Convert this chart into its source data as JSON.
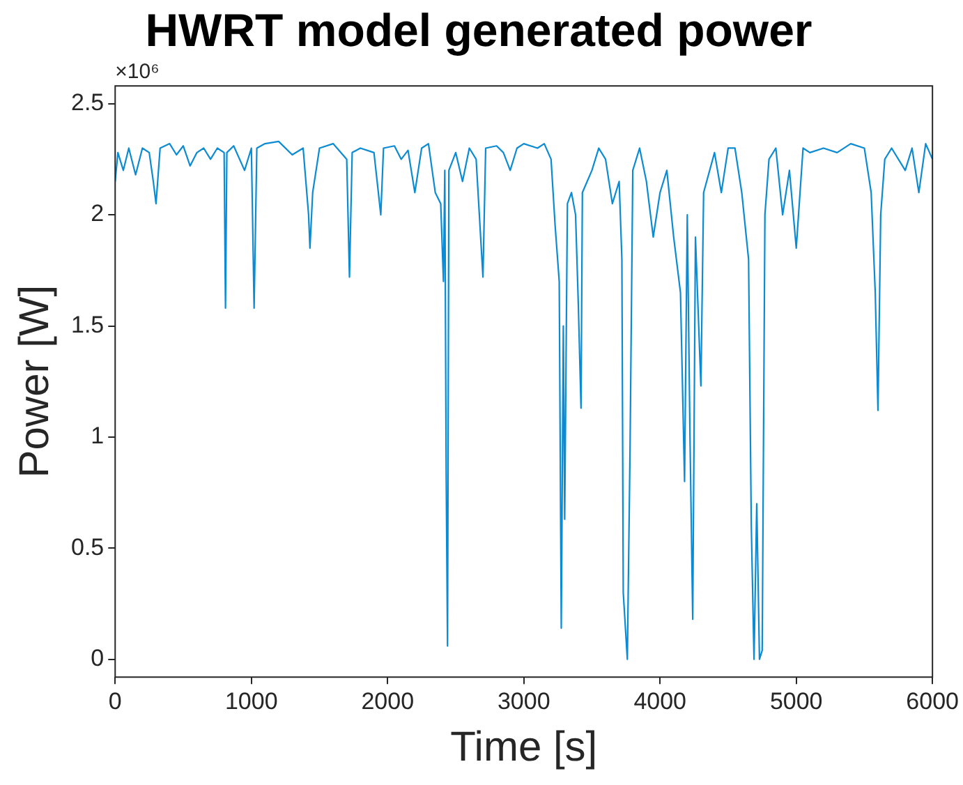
{
  "chart_data": {
    "type": "line",
    "title": "HWRT model generated power",
    "xlabel": "Time [s]",
    "ylabel": "Power [W]",
    "annotations": [
      "×10⁶"
    ],
    "color": "#0b8bd3",
    "x": [
      0,
      20,
      60,
      100,
      150,
      200,
      250,
      280,
      300,
      330,
      400,
      450,
      500,
      550,
      600,
      650,
      700,
      750,
      800,
      810,
      820,
      870,
      950,
      1000,
      1020,
      1040,
      1100,
      1200,
      1300,
      1380,
      1420,
      1430,
      1450,
      1500,
      1600,
      1700,
      1720,
      1740,
      1800,
      1900,
      1950,
      1970,
      2050,
      2100,
      2150,
      2200,
      2250,
      2300,
      2350,
      2390,
      2410,
      2420,
      2430,
      2440,
      2450,
      2500,
      2550,
      2600,
      2650,
      2700,
      2720,
      2800,
      2850,
      2900,
      2950,
      3000,
      3100,
      3150,
      3200,
      3230,
      3260,
      3275,
      3290,
      3300,
      3320,
      3350,
      3380,
      3400,
      3420,
      3430,
      3500,
      3550,
      3600,
      3650,
      3700,
      3720,
      3730,
      3760,
      3780,
      3800,
      3850,
      3900,
      3950,
      4000,
      4050,
      4100,
      4150,
      4180,
      4200,
      4220,
      4240,
      4260,
      4300,
      4320,
      4400,
      4450,
      4500,
      4550,
      4600,
      4650,
      4670,
      4690,
      4710,
      4730,
      4750,
      4770,
      4800,
      4850,
      4900,
      4950,
      5000,
      5050,
      5100,
      5200,
      5300,
      5400,
      5500,
      5550,
      5580,
      5600,
      5620,
      5650,
      5700,
      5800,
      5850,
      5900,
      5950,
      6000
    ],
    "values": [
      2.15,
      2.28,
      2.2,
      2.3,
      2.18,
      2.3,
      2.28,
      2.15,
      2.05,
      2.3,
      2.32,
      2.27,
      2.31,
      2.22,
      2.28,
      2.3,
      2.25,
      2.3,
      2.28,
      1.58,
      2.28,
      2.31,
      2.2,
      2.3,
      1.58,
      2.3,
      2.32,
      2.33,
      2.27,
      2.3,
      2.0,
      1.85,
      2.1,
      2.3,
      2.32,
      2.25,
      1.72,
      2.28,
      2.3,
      2.28,
      2.0,
      2.3,
      2.31,
      2.25,
      2.29,
      2.1,
      2.3,
      2.32,
      2.1,
      2.05,
      1.7,
      2.2,
      0.84,
      0.06,
      2.2,
      2.28,
      2.15,
      2.3,
      2.25,
      1.72,
      2.3,
      2.31,
      2.28,
      2.2,
      2.3,
      2.32,
      2.3,
      2.32,
      2.25,
      1.95,
      1.7,
      0.14,
      1.5,
      0.63,
      2.05,
      2.1,
      2.0,
      1.6,
      1.13,
      2.1,
      2.2,
      2.3,
      2.25,
      2.05,
      2.15,
      1.8,
      0.3,
      0,
      0.95,
      2.2,
      2.3,
      2.15,
      1.9,
      2.1,
      2.2,
      1.9,
      1.65,
      0.8,
      2.0,
      1.0,
      0.18,
      1.9,
      1.23,
      2.1,
      2.28,
      2.1,
      2.3,
      2.3,
      2.1,
      1.8,
      0.6,
      0,
      0.7,
      0,
      0.04,
      2.0,
      2.25,
      2.3,
      2.0,
      2.2,
      1.85,
      2.3,
      2.28,
      2.3,
      2.28,
      2.32,
      2.3,
      2.1,
      1.65,
      1.12,
      2.0,
      2.25,
      2.3,
      2.2,
      2.3,
      2.1,
      2.32,
      2.25
    ],
    "xlim": [
      0,
      6000
    ],
    "xticks": [
      0,
      1000,
      2000,
      3000,
      4000,
      5000,
      6000
    ],
    "ylim": [
      -0.08,
      2.58
    ],
    "yticks": [
      0,
      0.5,
      1,
      1.5,
      2,
      2.5
    ]
  }
}
